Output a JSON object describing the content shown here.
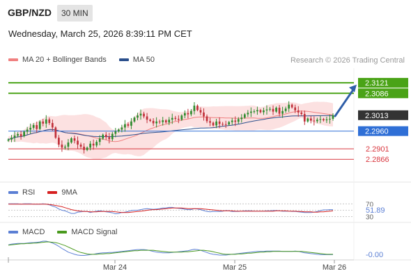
{
  "header": {
    "symbol": "GBP/NZD",
    "timeframe": "30 MIN",
    "datetime": "Wednesday, March 25, 2026 8:39:11 PM CET"
  },
  "credit": "Research © 2026 Trading Central",
  "main_legend": [
    {
      "label": "MA 20 + Bollinger Bands",
      "color": "#f08080"
    },
    {
      "label": "MA 50",
      "color": "#2b4f8c"
    }
  ],
  "rsi_legend": [
    {
      "label": "RSI",
      "color": "#5b7fd4"
    },
    {
      "label": "9MA",
      "color": "#d62020"
    }
  ],
  "macd_legend": [
    {
      "label": "MACD",
      "color": "#5b7fd4"
    },
    {
      "label": "MACD Signal",
      "color": "#4a9a1e"
    }
  ],
  "colors": {
    "up": "#2e8b2e",
    "down": "#c0303a",
    "resistance": "#4aa317",
    "support_blue": "#2f6fd6",
    "support_red": "#d9363e",
    "current": "#333333",
    "arrow": "#2f5ea8"
  },
  "chart_data": [
    {
      "type": "candlestick",
      "ylim": [
        2.279,
        2.317
      ],
      "x_ticks": [
        "Mar 24",
        "Mar 25",
        "Mar 26"
      ],
      "current_price": "2.3013",
      "levels": [
        {
          "value": 2.3121,
          "label": "2.3121",
          "kind": "resistance"
        },
        {
          "value": 2.3086,
          "label": "2.3086",
          "kind": "resistance"
        },
        {
          "value": 2.296,
          "label": "2.2960",
          "kind": "support_blue"
        },
        {
          "value": 2.2901,
          "label": "2.2901",
          "kind": "support_red"
        },
        {
          "value": 2.2866,
          "label": "2.2866",
          "kind": "support_red"
        }
      ],
      "forecast_arrow": {
        "from": 2.301,
        "to": 2.3115
      },
      "close": [
        2.2932,
        2.2938,
        2.2945,
        2.295,
        2.2943,
        2.2958,
        2.2965,
        2.2971,
        2.298,
        2.2967,
        2.2992,
        2.2985,
        2.2999,
        2.2987,
        2.2972,
        2.2938,
        2.2915,
        2.2905,
        2.2908,
        2.2922,
        2.2936,
        2.2928,
        2.2915,
        2.2908,
        2.2897,
        2.2905,
        2.2918,
        2.2912,
        2.2924,
        2.2935,
        2.2948,
        2.294,
        2.2933,
        2.2951,
        2.2959,
        2.2965,
        2.2972,
        2.2983,
        2.2978,
        2.2992,
        2.3005,
        2.3012,
        2.3018,
        2.3009,
        2.2998,
        2.2994,
        2.2986,
        2.2992,
        2.299,
        2.2996,
        2.2989,
        2.2998,
        2.3004,
        2.3001,
        2.2998,
        2.3012,
        2.302,
        2.3016,
        2.3027,
        2.3045,
        2.303,
        2.3022,
        2.3009,
        2.2993,
        2.2988,
        2.2979,
        2.2992,
        2.2984,
        2.2983,
        2.2982,
        2.299,
        2.2995,
        2.2991,
        2.3,
        2.3005,
        2.3016,
        2.3021,
        2.3025,
        2.3026,
        2.303,
        2.3023,
        2.3029,
        2.3032,
        2.3034,
        2.3025,
        2.3038,
        2.3018,
        2.3027,
        2.3035,
        2.3048,
        2.3039,
        2.3029,
        2.3022,
        2.3017,
        2.2992,
        2.3002,
        2.2995,
        2.2993,
        2.2998,
        2.3,
        2.2996,
        2.2999,
        2.3001,
        2.3013
      ]
    },
    {
      "type": "line",
      "name": "RSI",
      "value_label": "51.89",
      "ticks": [
        70,
        50,
        30
      ],
      "ylim": [
        25,
        75
      ],
      "series": [
        {
          "name": "RSI",
          "values": [
            70,
            70,
            70,
            70,
            69,
            70,
            70,
            70,
            69,
            69,
            69,
            70,
            69,
            67,
            63,
            60,
            54,
            50,
            48,
            44,
            40,
            40,
            44,
            45,
            46,
            46,
            43,
            45,
            47,
            48,
            47,
            45,
            44,
            42,
            39,
            40,
            43,
            44,
            46,
            49,
            50,
            50,
            52,
            54,
            55,
            54,
            53,
            54,
            55,
            57,
            57,
            59,
            59,
            57,
            56,
            55,
            53,
            52,
            52,
            55,
            54,
            52,
            49,
            46,
            45,
            46,
            46,
            46,
            47,
            49,
            48,
            46,
            46,
            46,
            47,
            48,
            48,
            48,
            47,
            47,
            47,
            47,
            48,
            48,
            49,
            49,
            48,
            47,
            47,
            47,
            46,
            46,
            45,
            44,
            43,
            43,
            43,
            44,
            46,
            49,
            51,
            51,
            52,
            52
          ]
        },
        {
          "name": "9MA",
          "values": [
            69,
            69,
            69,
            69,
            69,
            69,
            69,
            69,
            69,
            69,
            69,
            69,
            69,
            68,
            67,
            65,
            63,
            61,
            58,
            55,
            52,
            50,
            48,
            47,
            46,
            46,
            45,
            45,
            45,
            46,
            46,
            46,
            46,
            46,
            45,
            44,
            43,
            43,
            43,
            44,
            45,
            46,
            47,
            48,
            50,
            51,
            52,
            52,
            53,
            54,
            55,
            56,
            57,
            57,
            57,
            57,
            56,
            55,
            55,
            55,
            55,
            55,
            54,
            53,
            52,
            51,
            50,
            49,
            48,
            48,
            48,
            48,
            47,
            47,
            47,
            47,
            47,
            47,
            47,
            47,
            47,
            47,
            47,
            47,
            47,
            48,
            48,
            48,
            48,
            47,
            47,
            47,
            46,
            46,
            45,
            45,
            45,
            44,
            44,
            45,
            45,
            46,
            47,
            48
          ]
        }
      ]
    },
    {
      "type": "line",
      "name": "MACD",
      "value_label": "-0.00",
      "series": [
        {
          "name": "MACD",
          "values": [
            30,
            32,
            33,
            34,
            34,
            34,
            35,
            36,
            36,
            37,
            38,
            40,
            40,
            38,
            35,
            31,
            26,
            20,
            15,
            10,
            7,
            4,
            2,
            1,
            1,
            2,
            3,
            4,
            6,
            7,
            8,
            8,
            9,
            9,
            10,
            11,
            12,
            13,
            14,
            15,
            16,
            17,
            17,
            17,
            16,
            14,
            12,
            10,
            9,
            8,
            8,
            8,
            9,
            10,
            11,
            12,
            13,
            14,
            16,
            18,
            17,
            15,
            12,
            9,
            6,
            4,
            3,
            2,
            2,
            2,
            3,
            4,
            5,
            6,
            7,
            8,
            9,
            10,
            11,
            12,
            12,
            12,
            13,
            13,
            13,
            13,
            13,
            12,
            12,
            12,
            12,
            13,
            12,
            10,
            8,
            7,
            6,
            5,
            4,
            3,
            3,
            3,
            3,
            3
          ]
        },
        {
          "name": "MACD Signal",
          "values": [
            29,
            30,
            31,
            32,
            33,
            33,
            34,
            34,
            35,
            35,
            36,
            37,
            38,
            38,
            37,
            36,
            34,
            31,
            28,
            24,
            20,
            16,
            12,
            9,
            7,
            5,
            4,
            4,
            4,
            5,
            5,
            6,
            6,
            7,
            8,
            9,
            10,
            11,
            12,
            13,
            14,
            14,
            15,
            15,
            15,
            15,
            15,
            14,
            13,
            12,
            11,
            10,
            10,
            10,
            10,
            10,
            11,
            11,
            12,
            13,
            14,
            15,
            15,
            14,
            13,
            11,
            9,
            7,
            5,
            4,
            4,
            4,
            4,
            5,
            5,
            6,
            7,
            7,
            8,
            9,
            10,
            10,
            11,
            11,
            12,
            12,
            12,
            12,
            12,
            12,
            12,
            12,
            12,
            12,
            11,
            10,
            9,
            8,
            7,
            6,
            5,
            4,
            4,
            4
          ]
        }
      ]
    }
  ]
}
